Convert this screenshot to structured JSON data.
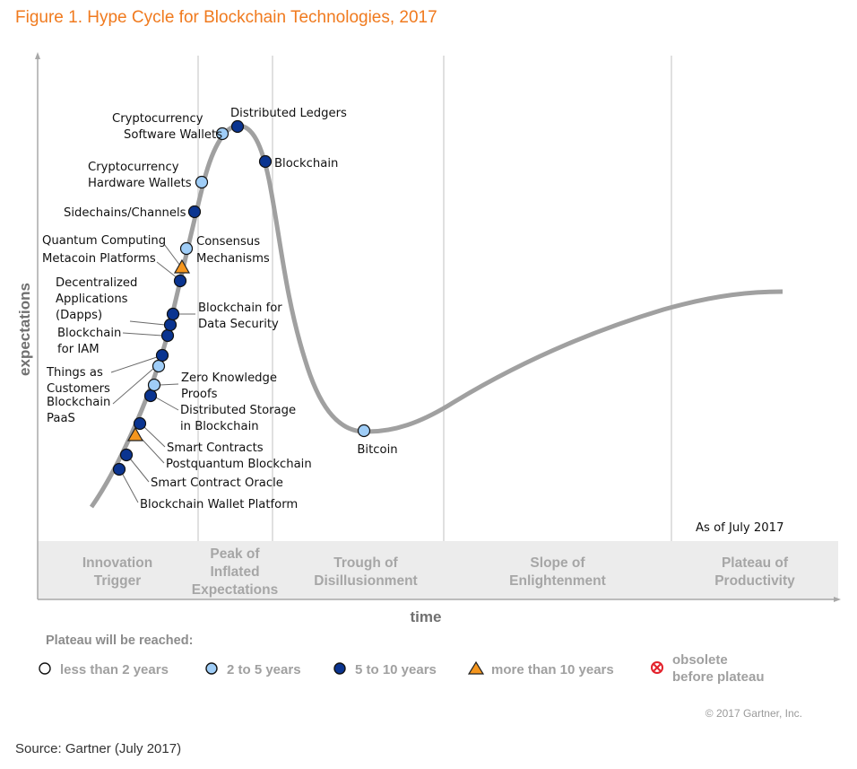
{
  "figure_title": "Figure 1. Hype Cycle for Blockchain Technologies, 2017",
  "source": "Source: Gartner (July 2017)",
  "colors": {
    "title": "#f07a1e",
    "curve": "#a0a0a0",
    "less_than_2": "#ffffff",
    "two_to_5": "#9fcdf7",
    "five_to_10": "#0a3490",
    "more_than_10": "#f5961e",
    "obsolete": "#e3202a",
    "phase_band": "#ececec"
  },
  "chart_data": {
    "type": "scatter",
    "title": "Hype Cycle for Blockchain Technologies, 2017",
    "xlabel": "time",
    "ylabel": "expectations",
    "as_of": "As of July 2017",
    "copyright": "© 2017 Gartner, Inc.",
    "phases": [
      {
        "label": [
          "Innovation",
          "Trigger"
        ]
      },
      {
        "label": [
          "Peak of",
          "Inflated",
          "Expectations"
        ]
      },
      {
        "label": [
          "Trough of",
          "Disillusionment"
        ]
      },
      {
        "label": [
          "Slope of",
          "Enlightenment"
        ]
      },
      {
        "label": [
          "Plateau of",
          "Productivity"
        ]
      }
    ],
    "legend": {
      "title": "Plateau will be reached:",
      "entries": [
        {
          "key": "less_than_2",
          "label": "less than 2 years",
          "marker": "circle-white"
        },
        {
          "key": "two_to_5",
          "label": "2 to 5 years",
          "marker": "circle-light-blue"
        },
        {
          "key": "five_to_10",
          "label": "5 to 10 years",
          "marker": "circle-dark-blue"
        },
        {
          "key": "more_than_10",
          "label": "more than 10 years",
          "marker": "triangle-orange"
        },
        {
          "key": "obsolete",
          "label": [
            "obsolete",
            "before plateau"
          ],
          "marker": "crossed-circle-red"
        }
      ]
    },
    "points": [
      {
        "name": "Blockchain Wallet Platform",
        "phase": "Innovation Trigger",
        "position": 0.04,
        "category": "five_to_10"
      },
      {
        "name": "Smart Contract Oracle",
        "phase": "Innovation Trigger",
        "position": 0.05,
        "category": "five_to_10"
      },
      {
        "name": "Postquantum Blockchain",
        "phase": "Innovation Trigger",
        "position": 0.06,
        "category": "more_than_10"
      },
      {
        "name": "Smart Contracts",
        "phase": "Innovation Trigger",
        "position": 0.065,
        "category": "five_to_10"
      },
      {
        "name": "Distributed Storage in Blockchain",
        "phase": "Innovation Trigger",
        "position": 0.075,
        "category": "five_to_10"
      },
      {
        "name": "Zero Knowledge Proofs",
        "phase": "Innovation Trigger",
        "position": 0.08,
        "category": "two_to_5"
      },
      {
        "name": "Blockchain PaaS",
        "phase": "Innovation Trigger",
        "position": 0.085,
        "category": "two_to_5"
      },
      {
        "name": "Things as Customers",
        "phase": "Innovation Trigger",
        "position": 0.09,
        "category": "five_to_10"
      },
      {
        "name": "Blockchain for IAM",
        "phase": "Innovation Trigger",
        "position": 0.095,
        "category": "five_to_10"
      },
      {
        "name": "Decentralized Applications (Dapps)",
        "phase": "Innovation Trigger",
        "position": 0.1,
        "category": "five_to_10"
      },
      {
        "name": "Blockchain for Data Security",
        "phase": "Innovation Trigger",
        "position": 0.102,
        "category": "five_to_10"
      },
      {
        "name": "Metacoin Platforms",
        "phase": "Innovation Trigger",
        "position": 0.11,
        "category": "five_to_10"
      },
      {
        "name": "Quantum Computing",
        "phase": "Innovation Trigger",
        "position": 0.112,
        "category": "more_than_10"
      },
      {
        "name": "Consensus Mechanisms",
        "phase": "Innovation Trigger",
        "position": 0.115,
        "category": "two_to_5"
      },
      {
        "name": "Sidechains/Channels",
        "phase": "Innovation Trigger",
        "position": 0.12,
        "category": "five_to_10"
      },
      {
        "name": "Cryptocurrency Hardware Wallets",
        "phase": "Peak of Inflated Expectations",
        "position": 0.125,
        "category": "two_to_5"
      },
      {
        "name": "Cryptocurrency Software Wallets",
        "phase": "Peak of Inflated Expectations",
        "position": 0.15,
        "category": "two_to_5"
      },
      {
        "name": "Distributed Ledgers",
        "phase": "Peak of Inflated Expectations",
        "position": 0.17,
        "category": "five_to_10"
      },
      {
        "name": "Blockchain",
        "phase": "Peak of Inflated Expectations",
        "position": 0.2,
        "category": "five_to_10"
      },
      {
        "name": "Bitcoin",
        "phase": "Trough of Disillusionment",
        "position": 0.33,
        "category": "two_to_5"
      }
    ]
  }
}
